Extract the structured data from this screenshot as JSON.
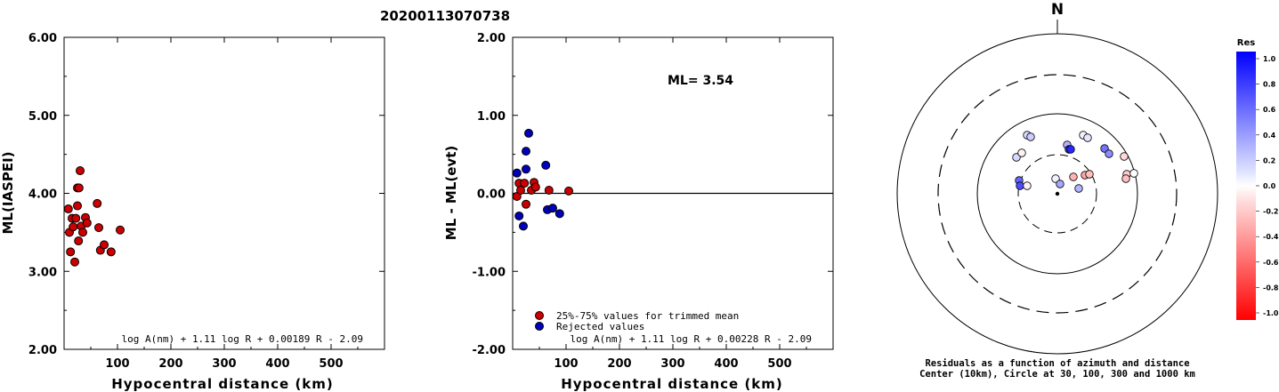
{
  "title": "20200113070738",
  "chart_data": [
    {
      "type": "scatter",
      "name_hint": "left",
      "ylabel": "ML(IASPEI)",
      "xlabel": "Hypocentral distance (km)",
      "xlim": [
        0,
        600
      ],
      "ylim": [
        2.0,
        6.0
      ],
      "xticks": [
        "100",
        "200",
        "300",
        "400",
        "500"
      ],
      "yticks": [
        "2.00",
        "3.00",
        "4.00",
        "5.00",
        "6.00"
      ],
      "formula": "log A(nm) + 1.11 log R + 0.00189 R - 2.09",
      "points": [
        [
          8,
          3.8
        ],
        [
          10,
          3.5
        ],
        [
          12,
          3.25
        ],
        [
          15,
          3.68
        ],
        [
          17,
          3.57
        ],
        [
          20,
          3.12
        ],
        [
          22,
          3.68
        ],
        [
          25,
          3.84
        ],
        [
          25,
          4.07
        ],
        [
          27,
          3.39
        ],
        [
          28,
          4.07
        ],
        [
          30,
          4.29
        ],
        [
          32,
          3.58
        ],
        [
          35,
          3.5
        ],
        [
          40,
          3.69
        ],
        [
          43,
          3.62
        ],
        [
          62,
          3.87
        ],
        [
          65,
          3.56
        ],
        [
          68,
          3.27
        ],
        [
          75,
          3.34
        ],
        [
          88,
          3.25
        ],
        [
          105,
          3.53
        ]
      ]
    },
    {
      "type": "scatter",
      "name_hint": "middle",
      "ylabel": "ML - ML(evt)",
      "xlabel": "Hypocentral distance (km)",
      "xlim": [
        0,
        600
      ],
      "ylim": [
        -2.0,
        2.0
      ],
      "xticks": [
        "100",
        "200",
        "300",
        "400",
        "500"
      ],
      "yticks": [
        "-2.00",
        "-1.00",
        "0.00",
        "1.00",
        "2.00"
      ],
      "annotation": "ML= 3.54",
      "formula": "log A(nm) + 1.11 log R + 0.00228 R - 2.09",
      "legend": [
        "25%-75% values for trimmed mean",
        "Rejected values"
      ],
      "legend_position": "bottom-left",
      "colors": {
        "trimmed": "#cc0000",
        "rejected": "#0000bb"
      },
      "trimmed_points": [
        [
          8,
          -0.04
        ],
        [
          12,
          0.13
        ],
        [
          15,
          0.04
        ],
        [
          22,
          0.13
        ],
        [
          25,
          -0.14
        ],
        [
          35,
          0.04
        ],
        [
          40,
          0.14
        ],
        [
          43,
          0.08
        ],
        [
          68,
          0.04
        ],
        [
          105,
          0.03
        ]
      ],
      "rejected_points": [
        [
          8,
          0.26
        ],
        [
          12,
          -0.29
        ],
        [
          20,
          -0.42
        ],
        [
          25,
          0.31
        ],
        [
          25,
          0.54
        ],
        [
          30,
          0.77
        ],
        [
          62,
          0.36
        ],
        [
          65,
          -0.21
        ],
        [
          75,
          -0.19
        ],
        [
          88,
          -0.26
        ]
      ]
    },
    {
      "type": "polar",
      "north_label": "N",
      "caption_line1": "Residuals as a function of azimuth and distance",
      "caption_line2": "Center (10km), Circle at 30, 100, 300 and 1000 km",
      "colorbar_title": "Res",
      "colorbar_ticks": [
        "1.0",
        "0.8",
        "0.6",
        "0.4",
        "0.2",
        "0.0",
        "-0.2",
        "-0.4",
        "-0.6",
        "-0.8",
        "-1.0"
      ],
      "stations": [
        {
          "dx": -34,
          "dy": -66,
          "r": 0.15
        },
        {
          "dx": -30,
          "dy": -64,
          "r": 0.2
        },
        {
          "dx": -46,
          "dy": -41,
          "r": 0.15
        },
        {
          "dx": -40,
          "dy": -46,
          "r": -0.05
        },
        {
          "dx": -43,
          "dy": -15,
          "r": 0.6
        },
        {
          "dx": -42,
          "dy": -9,
          "r": 0.7
        },
        {
          "dx": -34,
          "dy": -9,
          "r": -0.05
        },
        {
          "dx": 11,
          "dy": -55,
          "r": 0.3
        },
        {
          "dx": 13,
          "dy": -50,
          "r": 0.8
        },
        {
          "dx": 15,
          "dy": -50,
          "r": 0.85
        },
        {
          "dx": 29,
          "dy": -66,
          "r": 0.05
        },
        {
          "dx": 34,
          "dy": -63,
          "r": 0.1
        },
        {
          "dx": 53,
          "dy": -51,
          "r": 0.55
        },
        {
          "dx": 58,
          "dy": -45,
          "r": 0.45
        },
        {
          "dx": 75,
          "dy": -42,
          "r": -0.15
        },
        {
          "dx": 78,
          "dy": -22,
          "r": -0.2
        },
        {
          "dx": 86,
          "dy": -23,
          "r": 0.0
        },
        {
          "dx": 77,
          "dy": -17,
          "r": -0.25
        },
        {
          "dx": -2,
          "dy": -17,
          "r": 0.05
        },
        {
          "dx": 3,
          "dy": -11,
          "r": 0.35
        },
        {
          "dx": 18,
          "dy": -19,
          "r": -0.3
        },
        {
          "dx": 31,
          "dy": -21,
          "r": -0.35
        },
        {
          "dx": 36,
          "dy": -22,
          "r": -0.25
        },
        {
          "dx": 24,
          "dy": -6,
          "r": 0.3
        }
      ]
    }
  ]
}
